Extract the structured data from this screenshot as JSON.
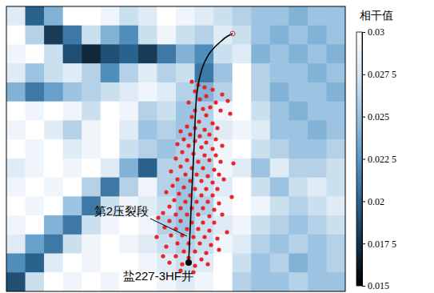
{
  "chart_data": {
    "type": "heatmap",
    "tick_labels": false,
    "xlim": [
      0,
      424
    ],
    "ylim": [
      0,
      356
    ],
    "cells": [
      [
        0.028,
        0.02,
        0.024,
        0.03,
        0.03,
        0.029,
        0.027,
        0.028,
        0.03,
        0.029,
        0.028,
        0.027,
        0.026,
        0.025,
        0.025,
        0.024,
        0.025,
        0.025
      ],
      [
        0.03,
        0.026,
        0.018,
        0.021,
        0.027,
        0.024,
        0.022,
        0.027,
        0.029,
        0.027,
        0.026,
        0.028,
        0.027,
        0.025,
        0.024,
        0.025,
        0.024,
        0.025
      ],
      [
        0.029,
        0.03,
        0.027,
        0.019,
        0.017,
        0.019,
        0.02,
        0.018,
        0.021,
        0.024,
        0.022,
        0.027,
        0.028,
        0.024,
        0.025,
        0.024,
        0.025,
        0.024
      ],
      [
        0.028,
        0.025,
        0.027,
        0.028,
        0.026,
        0.022,
        0.026,
        0.028,
        0.026,
        0.027,
        0.021,
        0.025,
        0.03,
        0.026,
        0.025,
        0.025,
        0.024,
        0.025
      ],
      [
        0.024,
        0.021,
        0.023,
        0.025,
        0.026,
        0.027,
        0.028,
        0.029,
        0.028,
        0.026,
        0.024,
        0.026,
        0.03,
        0.026,
        0.024,
        0.025,
        0.025,
        0.024
      ],
      [
        0.03,
        0.029,
        0.03,
        0.029,
        0.027,
        0.03,
        0.029,
        0.026,
        0.027,
        0.025,
        0.026,
        0.029,
        0.03,
        0.027,
        0.025,
        0.024,
        0.025,
        0.025
      ],
      [
        0.029,
        0.03,
        0.028,
        0.026,
        0.029,
        0.03,
        0.028,
        0.025,
        0.026,
        0.025,
        0.026,
        0.028,
        0.029,
        0.028,
        0.025,
        0.025,
        0.024,
        0.025
      ],
      [
        0.03,
        0.029,
        0.03,
        0.028,
        0.029,
        0.03,
        0.027,
        0.026,
        0.025,
        0.026,
        0.027,
        0.029,
        0.03,
        0.027,
        0.026,
        0.025,
        0.025,
        0.026
      ],
      [
        0.028,
        0.029,
        0.03,
        0.029,
        0.03,
        0.028,
        0.024,
        0.02,
        0.026,
        0.026,
        0.026,
        0.029,
        0.028,
        0.025,
        0.028,
        0.026,
        0.026,
        0.027
      ],
      [
        0.029,
        0.03,
        0.029,
        0.03,
        0.026,
        0.021,
        0.026,
        0.029,
        0.026,
        0.025,
        0.027,
        0.028,
        0.03,
        0.027,
        0.025,
        0.027,
        0.028,
        0.027
      ],
      [
        0.03,
        0.029,
        0.03,
        0.025,
        0.021,
        0.027,
        0.029,
        0.028,
        0.027,
        0.025,
        0.026,
        0.029,
        0.03,
        0.029,
        0.027,
        0.026,
        0.027,
        0.028
      ],
      [
        0.029,
        0.03,
        0.024,
        0.021,
        0.027,
        0.029,
        0.03,
        0.029,
        0.026,
        0.025,
        0.027,
        0.028,
        0.029,
        0.027,
        0.026,
        0.025,
        0.026,
        0.027
      ],
      [
        0.028,
        0.023,
        0.021,
        0.027,
        0.029,
        0.03,
        0.029,
        0.028,
        0.027,
        0.026,
        0.027,
        0.029,
        0.028,
        0.026,
        0.025,
        0.026,
        0.025,
        0.026
      ],
      [
        0.022,
        0.02,
        0.028,
        0.03,
        0.029,
        0.03,
        0.03,
        0.029,
        0.028,
        0.027,
        0.028,
        0.03,
        0.027,
        0.025,
        0.026,
        0.024,
        0.025,
        0.026
      ],
      [
        0.019,
        0.027,
        0.03,
        0.029,
        0.03,
        0.029,
        0.03,
        0.03,
        0.029,
        0.028,
        0.029,
        0.03,
        0.026,
        0.025,
        0.025,
        0.026,
        0.025,
        0.025
      ]
    ],
    "colorbar": {
      "title": "相干值",
      "range": [
        0.015,
        0.03
      ],
      "ticks": [
        0.015,
        {
          "value": 0.0175,
          "label": "0.017 5"
        },
        0.02,
        {
          "value": 0.0225,
          "label": "0.022 5"
        },
        0.025,
        {
          "value": 0.0275,
          "label": "0.027 5"
        },
        0.03
      ]
    },
    "series": [
      {
        "type": "scatter",
        "color": "#e8232a",
        "marker": "circle",
        "x": [
          232,
          240,
          248,
          236,
          258,
          270,
          277,
          250,
          242,
          228,
          262,
          255,
          246,
          236,
          268,
          232,
          250,
          280,
          241,
          258,
          226,
          236,
          248,
          264,
          218,
          230,
          242,
          254,
          222,
          236,
          250,
          262,
          214,
          228,
          244,
          258,
          270,
          220,
          234,
          248,
          262,
          212,
          226,
          240,
          254,
          268,
          218,
          232,
          246,
          260,
          206,
          224,
          238,
          252,
          266,
          214,
          230,
          244,
          258,
          272,
          208,
          222,
          236,
          250,
          264,
          216,
          230,
          244,
          258,
          200,
          210,
          224,
          238,
          252,
          266,
          204,
          218,
          232,
          246,
          260,
          196,
          212,
          226,
          240,
          254,
          270,
          204,
          218,
          232,
          246,
          260,
          198,
          212,
          226,
          240,
          254,
          206,
          220,
          234,
          248,
          264,
          214,
          228,
          242,
          256,
          200,
          222,
          236,
          250,
          212,
          228,
          244,
          204,
          220,
          236,
          252,
          196,
          218,
          234,
          266,
          276,
          188,
          190,
          282,
          284
        ],
        "y": [
          262,
          258,
          255,
          250,
          252,
          246,
          238,
          244,
          240,
          236,
          236,
          230,
          228,
          226,
          226,
          218,
          220,
          222,
          212,
          210,
          206,
          204,
          202,
          204,
          200,
          196,
          194,
          196,
          190,
          188,
          186,
          190,
          184,
          182,
          180,
          178,
          182,
          174,
          172,
          170,
          170,
          166,
          164,
          162,
          164,
          162,
          156,
          154,
          154,
          152,
          150,
          146,
          146,
          144,
          146,
          140,
          138,
          138,
          136,
          140,
          132,
          130,
          128,
          128,
          128,
          122,
          120,
          120,
          120,
          124,
          114,
          112,
          112,
          112,
          110,
          106,
          104,
          104,
          104,
          102,
          98,
          96,
          96,
          96,
          94,
          96,
          88,
          88,
          86,
          86,
          86,
          80,
          78,
          78,
          78,
          76,
          70,
          70,
          68,
          68,
          66,
          60,
          60,
          60,
          58,
          56,
          50,
          50,
          48,
          44,
          42,
          40,
          36,
          34,
          32,
          34,
          44,
          26,
          24,
          52,
          74,
          68,
          92,
          118,
          160
        ]
      },
      {
        "type": "line",
        "color": "#000000",
        "line_style": "solid",
        "x": [
          228,
          230,
          232,
          235,
          238,
          242,
          247,
          256,
          268,
          277,
          283
        ],
        "y": [
          36,
          80,
          124,
          184,
          244,
          268,
          284,
          300,
          312,
          319,
          322
        ]
      }
    ],
    "annotations": [
      {
        "text": "第2压裂段",
        "x": 226,
        "y": 69
      },
      {
        "text": "盐227-3HF井",
        "x": 228,
        "y": 36
      }
    ]
  }
}
